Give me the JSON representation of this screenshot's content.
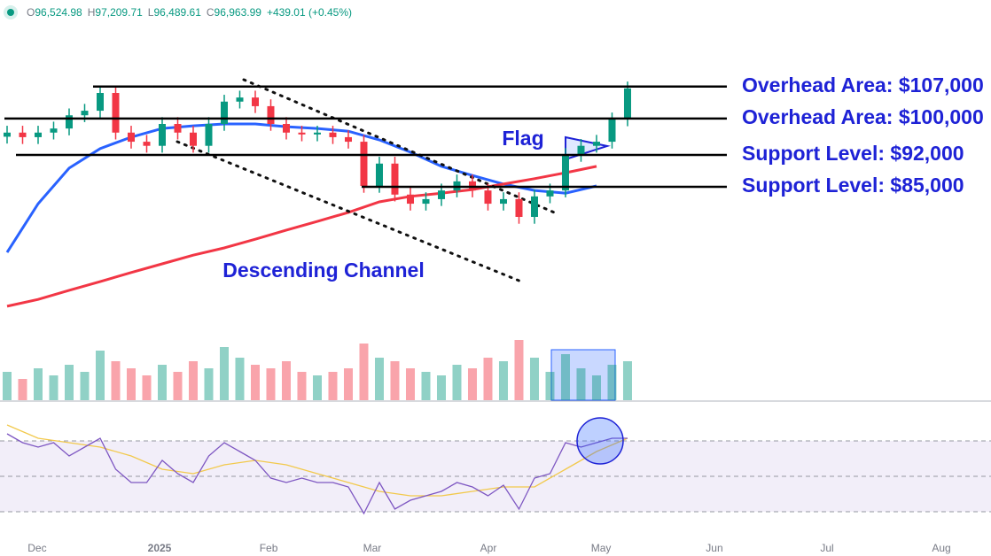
{
  "header": {
    "items": [
      {
        "label": "O",
        "value": "96,524.98"
      },
      {
        "label": "H",
        "value": "97,209.71"
      },
      {
        "label": "L",
        "value": "96,489.61"
      },
      {
        "label": "C",
        "value": "96,963.99"
      }
    ],
    "change": "+439.01 (+0.45%)"
  },
  "chart_data": {
    "type": "candlestick",
    "xlim": [
      -0.457,
      63.43
    ],
    "xticks": [
      {
        "value": 1.94,
        "label": "Dec"
      },
      {
        "value": 9.83,
        "label": "2025"
      },
      {
        "value": 16.86,
        "label": "Feb"
      },
      {
        "value": 23.54,
        "label": "Mar"
      },
      {
        "value": 31.03,
        "label": "Apr"
      },
      {
        "value": 38.29,
        "label": "May"
      },
      {
        "value": 45.6,
        "label": "Jun"
      },
      {
        "value": 52.86,
        "label": "Jul"
      },
      {
        "value": 60.23,
        "label": "Aug"
      }
    ],
    "ylim": [
      58000,
      126000
    ],
    "up_color": "#089981",
    "down_color": "#f23645",
    "open": [
      96000,
      96900,
      95900,
      96900,
      97800,
      100700,
      101700,
      105600,
      96900,
      94900,
      94000,
      98800,
      96900,
      94000,
      98800,
      103700,
      104600,
      102700,
      98800,
      96900,
      96500,
      96900,
      95900,
      94900,
      85200,
      90100,
      83300,
      81300,
      82300,
      84200,
      86200,
      84200,
      81300,
      82300,
      78400,
      82900,
      84200,
      92000,
      94000,
      94900,
      99800
    ],
    "high": [
      98400,
      98400,
      98400,
      99300,
      102200,
      103200,
      107100,
      107100,
      98400,
      96400,
      100300,
      100300,
      98400,
      100300,
      105200,
      106100,
      106100,
      104200,
      100300,
      98400,
      98400,
      98400,
      97400,
      96400,
      91600,
      91600,
      84800,
      83800,
      85700,
      87700,
      87700,
      85700,
      83800,
      83800,
      84400,
      85700,
      93500,
      95500,
      96400,
      101300,
      108100
    ],
    "low": [
      94500,
      94400,
      94400,
      95400,
      96300,
      99200,
      100200,
      95400,
      93400,
      92500,
      92500,
      95400,
      92500,
      92500,
      97300,
      102200,
      101200,
      97300,
      95400,
      95000,
      95000,
      94400,
      93400,
      83700,
      83700,
      81800,
      79800,
      79800,
      80800,
      82700,
      82700,
      79800,
      79800,
      76900,
      76900,
      81400,
      82700,
      90500,
      92500,
      93400,
      98300
    ],
    "close": [
      96900,
      95900,
      96900,
      97800,
      100700,
      101700,
      105600,
      96900,
      94900,
      94000,
      98800,
      96900,
      94000,
      98800,
      103700,
      104600,
      102700,
      98800,
      96900,
      96500,
      96900,
      95900,
      94900,
      85200,
      90100,
      83300,
      81300,
      82300,
      84200,
      86200,
      84200,
      81300,
      82300,
      78400,
      82900,
      84200,
      92000,
      94000,
      94900,
      99800,
      106600
    ],
    "moving_averages": [
      {
        "color": "#2962ff",
        "x": [
          0,
          2,
          4,
          6,
          8,
          10,
          12,
          14,
          16,
          18,
          20,
          22,
          24,
          26,
          28,
          30,
          32,
          34,
          36,
          38
        ],
        "values": [
          70600,
          81300,
          89100,
          93400,
          95900,
          97800,
          98400,
          98800,
          98800,
          98200,
          97800,
          97200,
          95300,
          92600,
          89500,
          87500,
          85600,
          84200,
          83600,
          85200
        ]
      },
      {
        "color": "#f23645",
        "x": [
          0,
          2,
          4,
          6,
          8,
          10,
          12,
          14,
          16,
          18,
          20,
          22,
          24,
          26,
          28,
          30,
          32,
          34,
          36,
          38
        ],
        "values": [
          58800,
          60300,
          62300,
          64200,
          66200,
          68100,
          70000,
          71600,
          73500,
          75500,
          77400,
          79400,
          81700,
          82900,
          83600,
          84400,
          85600,
          86800,
          88100,
          89500
        ]
      }
    ],
    "levels": [
      {
        "value": 107000,
        "label": "Overhead Area: $107,000"
      },
      {
        "value": 100000,
        "label": "Overhead Area: $100,000"
      },
      {
        "value": 92000,
        "label": "Support Level: $92,000"
      },
      {
        "value": 85000,
        "label": "Support Level: $85,000"
      }
    ],
    "annotation_color": "#1e22d6",
    "annotations": [
      "Flag",
      "Descending Channel"
    ],
    "volume": {
      "ylim": [
        0,
        100
      ],
      "values": [
        40,
        30,
        45,
        35,
        50,
        40,
        70,
        55,
        45,
        35,
        50,
        40,
        55,
        45,
        75,
        60,
        50,
        45,
        55,
        40,
        35,
        40,
        45,
        80,
        60,
        55,
        45,
        40,
        35,
        50,
        45,
        60,
        55,
        85,
        60,
        40,
        65,
        45,
        35,
        50,
        55
      ]
    },
    "rsi": {
      "ylim": [
        19,
        91.5
      ],
      "levels": [
        30,
        50,
        70
      ],
      "color": "#7e57c2",
      "ma_color": "#f2c94c",
      "values": [
        74,
        69,
        66.5,
        69,
        61.5,
        66.5,
        71.5,
        54,
        46.5,
        46.5,
        59,
        51.5,
        46.5,
        61.5,
        69,
        64,
        59,
        49,
        46.5,
        49,
        46.5,
        46.5,
        44,
        29,
        46.5,
        31.5,
        36.5,
        39,
        41.5,
        46.5,
        44,
        39,
        45,
        31.5,
        49,
        51.5,
        69,
        66.5,
        69,
        71.5,
        71.5
      ],
      "ma_x": [
        0,
        2,
        4,
        6,
        8,
        10,
        12,
        14,
        16,
        18,
        20,
        22,
        24,
        26,
        28,
        30,
        32,
        34,
        36,
        38,
        40
      ],
      "ma": [
        79,
        71.5,
        69,
        66.5,
        61.5,
        54,
        51.5,
        56.5,
        59,
        56.5,
        51.5,
        46.5,
        41.5,
        39,
        39,
        41.5,
        44,
        44,
        54,
        64,
        71.5
      ]
    }
  }
}
